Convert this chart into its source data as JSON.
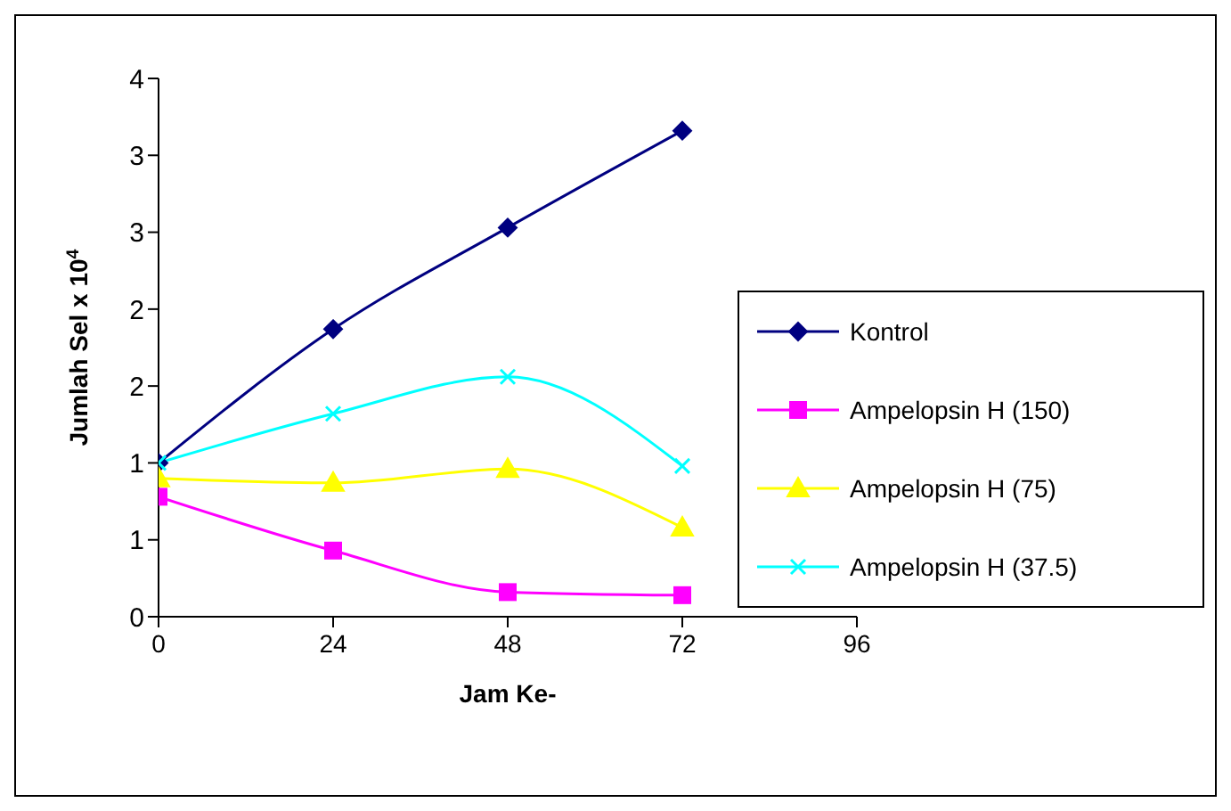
{
  "chart_data": {
    "type": "line",
    "xlabel": "Jam Ke-",
    "ylabel": "Jumlah Sel x 10$^{4}$",
    "x": [
      0,
      24,
      48,
      72
    ],
    "series": [
      {
        "name": "Kontrol",
        "color": "#000080",
        "marker": "diamond",
        "values": [
          1.0,
          1.87,
          2.53,
          3.16
        ]
      },
      {
        "name": "Ampelopsin H (150)",
        "color": "#ff00ff",
        "marker": "square",
        "values": [
          0.78,
          0.43,
          0.16,
          0.14
        ]
      },
      {
        "name": "Ampelopsin H (75)",
        "color": "#ffff00",
        "marker": "triangle",
        "values": [
          0.9,
          0.87,
          0.96,
          0.58
        ]
      },
      {
        "name": "Ampelopsin H (37.5)",
        "color": "#00ffff",
        "marker": "cross",
        "values": [
          1.0,
          1.32,
          1.56,
          0.98
        ]
      }
    ],
    "xlim": [
      0,
      96
    ],
    "xticks": [
      0,
      24,
      48,
      72,
      96
    ],
    "ylim": [
      0,
      3.5
    ],
    "yticks": [
      0,
      {
        "value": 0.5,
        "label": "1"
      },
      1,
      {
        "value": 1.5,
        "label": "2"
      },
      2,
      {
        "value": 2.5,
        "label": "3"
      },
      3,
      {
        "value": 3.5,
        "label": "4"
      }
    ],
    "grid": false,
    "legend": "right",
    "line_style": "solid"
  }
}
